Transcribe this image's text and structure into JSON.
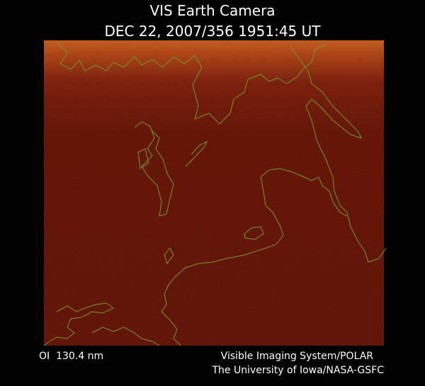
{
  "header": {
    "title": "VIS Earth Camera",
    "timestamp": "DEC 22, 2007/356 1951:45 UT"
  },
  "footer": {
    "filter": "OI  130.4 nm",
    "instrument": "Visible Imaging System/POLAR",
    "institution": "The University of Iowa/NASA-GSFC"
  }
}
